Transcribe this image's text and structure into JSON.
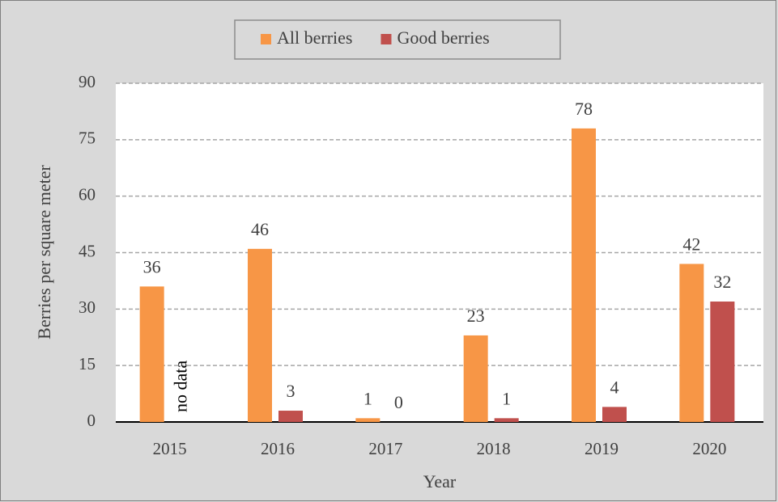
{
  "chart_data": {
    "type": "bar",
    "categories": [
      "2015",
      "2016",
      "2017",
      "2018",
      "2019",
      "2020"
    ],
    "series": [
      {
        "name": "All berries",
        "color": "#f79646",
        "values": [
          36,
          46,
          1,
          23,
          78,
          42
        ]
      },
      {
        "name": "Good berries",
        "color": "#c0504d",
        "values": [
          null,
          3,
          0,
          1,
          4,
          32
        ]
      }
    ],
    "annotation": "no data",
    "x_label": "Year",
    "y_label": "Berries per square meter",
    "ylim": [
      0,
      90
    ],
    "yticks": [
      0,
      15,
      30,
      45,
      60,
      75,
      90
    ],
    "grid": true,
    "legend": "top"
  }
}
